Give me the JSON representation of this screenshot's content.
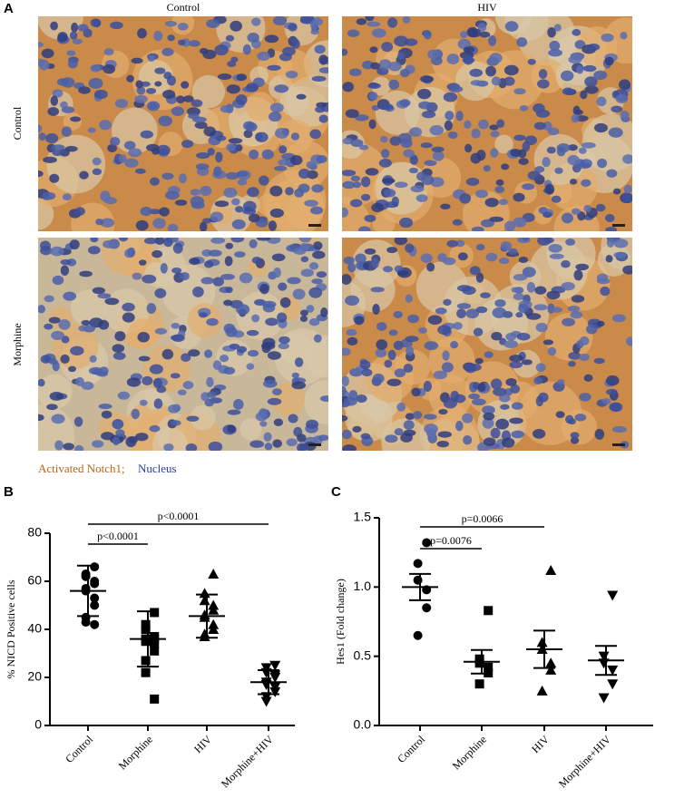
{
  "panel_labels": [
    "A",
    "B",
    "C"
  ],
  "micrographs": {
    "columns": [
      "Control",
      "HIV"
    ],
    "rows": [
      "Control",
      "Morphine"
    ],
    "legend": [
      "Activated Notch1;",
      "Nucleus"
    ]
  },
  "chart_data": [
    {
      "type": "strip",
      "ylabel": "% NICD Positive cells",
      "categories": [
        "Control",
        "Morphine",
        "HIV",
        "Morphine+HIV"
      ],
      "markers": [
        "circle",
        "square",
        "triangle",
        "triangle-down"
      ],
      "color": "#000000",
      "values": [
        [
          66,
          63,
          62,
          60,
          59,
          57,
          56,
          53,
          50,
          45,
          43,
          42
        ],
        [
          47,
          42,
          40,
          37,
          36,
          36,
          35,
          34,
          31,
          27,
          22,
          11
        ],
        [
          63,
          55,
          52,
          50,
          48,
          46,
          45,
          42,
          40,
          38,
          37
        ],
        [
          25,
          24,
          22,
          21,
          20,
          18,
          17,
          16,
          14,
          12,
          10
        ]
      ],
      "means": [
        56,
        36,
        45.5,
        18
      ],
      "errors": [
        10.5,
        11.5,
        9,
        5
      ],
      "ylim": [
        0,
        80
      ],
      "yticks": [
        0,
        20,
        40,
        60,
        80
      ],
      "annotations": [
        "p<0.0001",
        "p<0.0001"
      ]
    },
    {
      "type": "strip",
      "ylabel": "Hes1 (Fold change)",
      "categories": [
        "Control",
        "Morphine",
        "HIV",
        "Morphine+HIV"
      ],
      "markers": [
        "circle",
        "square",
        "triangle",
        "triangle-down"
      ],
      "color": "#000000",
      "values": [
        [
          1.32,
          1.17,
          1.05,
          0.98,
          0.85,
          0.65
        ],
        [
          0.83,
          0.48,
          0.45,
          0.42,
          0.38,
          0.3
        ],
        [
          1.12,
          0.6,
          0.55,
          0.45,
          0.4,
          0.25
        ],
        [
          0.94,
          0.5,
          0.45,
          0.4,
          0.3,
          0.2
        ]
      ],
      "means": [
        1.0,
        0.46,
        0.55,
        0.47
      ],
      "errors": [
        0.095,
        0.085,
        0.135,
        0.105
      ],
      "ylim": [
        0,
        1.5
      ],
      "yticks": [
        {
          "value": 0,
          "label": "0.0"
        },
        0.5,
        {
          "value": 1,
          "label": "1.0"
        },
        1.5
      ],
      "annotations": [
        "p=0.0076",
        "p=0.0066"
      ]
    }
  ]
}
